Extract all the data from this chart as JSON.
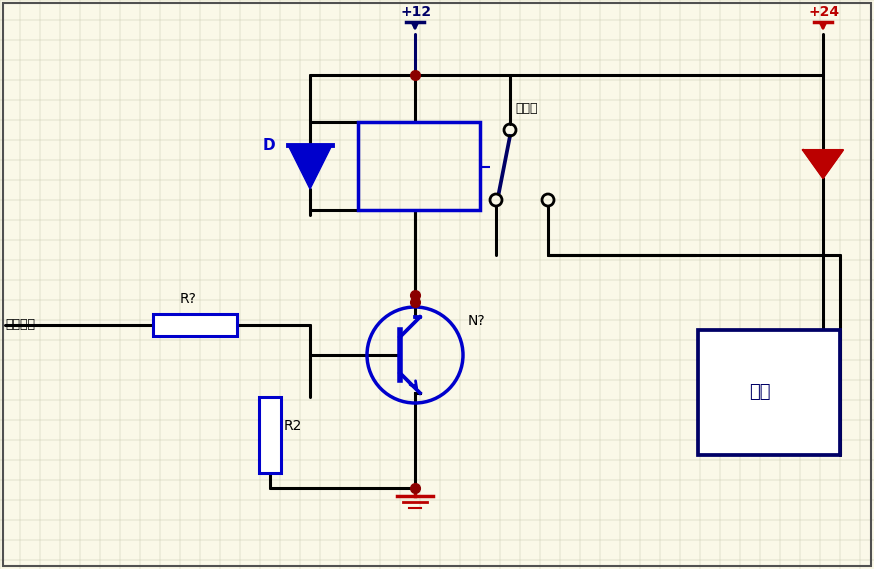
{
  "bg_color": "#faf8e8",
  "grid_color": "#c8c8b0",
  "blue_color": "#0000cc",
  "red_color": "#bb0000",
  "dark_color": "#000066",
  "wire_color": "#000000",
  "fig_width": 8.74,
  "fig_height": 5.69,
  "dpi": 100,
  "label_jiedian": "接单片机",
  "label_relay": "继电器",
  "label_valve": "气阀",
  "label_R1": "R?",
  "label_R2": "R2",
  "label_D": "D",
  "label_N": "N?",
  "label_12v": "+12",
  "label_24v": "+24"
}
